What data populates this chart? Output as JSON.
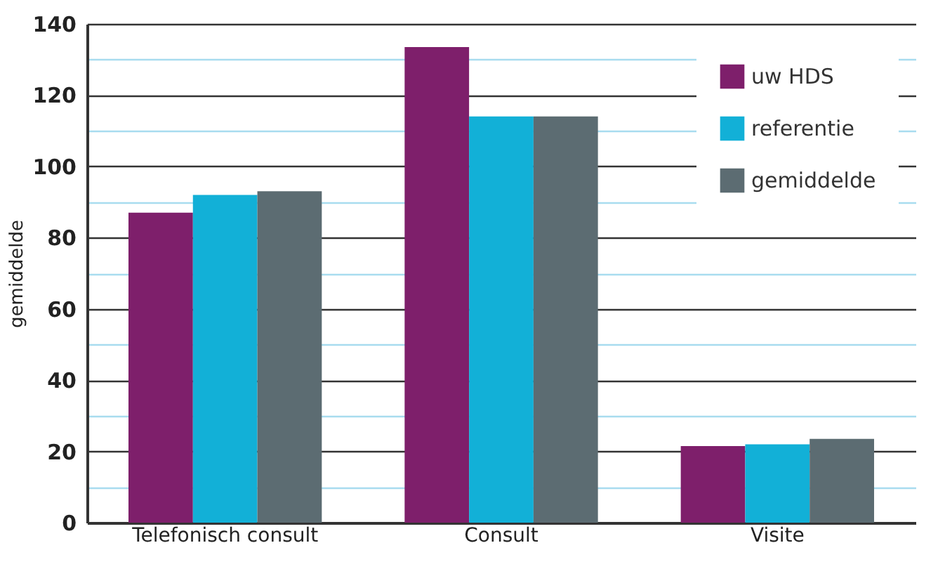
{
  "chart_data": {
    "type": "bar",
    "ylabel": "gemiddelde",
    "categories": [
      "Telefonisch consult",
      "Consult",
      "Visite"
    ],
    "series": [
      {
        "name": "uw HDS",
        "color": "#7e1f6b",
        "values": [
          87,
          133.5,
          21.5
        ]
      },
      {
        "name": "referentie",
        "color": "#12b0d7",
        "values": [
          92,
          114,
          22
        ]
      },
      {
        "name": "gemiddelde",
        "color": "#5c6c72",
        "values": [
          93,
          114,
          23.5
        ]
      }
    ],
    "ylim": [
      0,
      140
    ],
    "yticks": [
      0,
      {
        "value": 10,
        "label": null
      },
      20,
      {
        "value": 30,
        "label": null
      },
      40,
      {
        "value": 50,
        "label": null
      },
      60,
      {
        "value": 70,
        "label": null
      },
      80,
      {
        "value": 90,
        "label": null
      },
      100,
      {
        "value": 110,
        "label": null
      },
      120,
      {
        "value": 130,
        "label": null
      },
      140
    ],
    "grid": true,
    "legend": "top right"
  }
}
